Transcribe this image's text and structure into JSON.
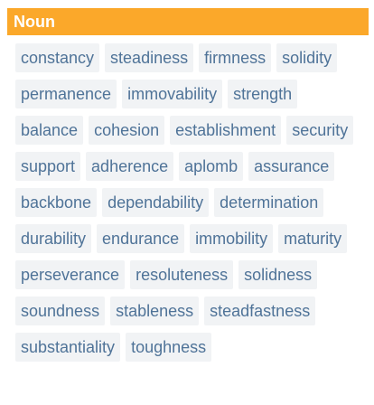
{
  "section": {
    "part_of_speech": "Noun"
  },
  "synonyms": [
    "constancy",
    "steadiness",
    "firmness",
    "solidity",
    "permanence",
    "immovability",
    "strength",
    "balance",
    "cohesion",
    "establishment",
    "security",
    "support",
    "adherence",
    "aplomb",
    "assurance",
    "backbone",
    "dependability",
    "determination",
    "durability",
    "endurance",
    "immobility",
    "maturity",
    "perseverance",
    "resoluteness",
    "solidness",
    "soundness",
    "stableness",
    "steadfastness",
    "substantiality",
    "toughness"
  ],
  "colors": {
    "header_bg": "#fba82a",
    "header_text": "#ffffff",
    "chip_bg": "#f1f3f5",
    "chip_text": "#4f7398"
  }
}
